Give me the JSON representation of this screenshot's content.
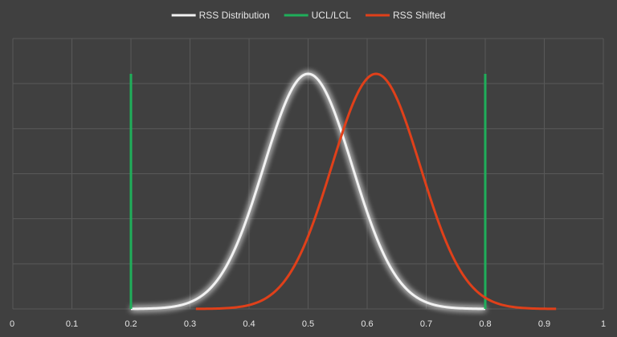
{
  "colors": {
    "background": "#404040",
    "plot_background": "#404040",
    "grid": "#595959",
    "axis_text": "#e6e6e6",
    "rss_distribution": "#f2f2f2",
    "ucl_lcl": "#1fae5a",
    "rss_shifted": "#e0401a"
  },
  "chart_data": {
    "type": "line",
    "title": "",
    "xlabel": "",
    "ylabel": "",
    "xlim": [
      0,
      1
    ],
    "x_ticks": [
      "0",
      "0.1",
      "0.2",
      "0.3",
      "0.4",
      "0.5",
      "0.6",
      "0.7",
      "0.8",
      "0.9",
      "1"
    ],
    "y_axis_labels_shown": false,
    "grid": true,
    "legend_position": "top-center",
    "series": [
      {
        "name": "RSS Distribution",
        "color": "#f2f2f2",
        "glow": true,
        "kind": "normal-curve",
        "mean": 0.5,
        "std": 0.075,
        "x_range": [
          0.2,
          0.8
        ],
        "peak": 1.0
      },
      {
        "name": "UCL/LCL",
        "color": "#1fae5a",
        "kind": "vertical-lines",
        "x": [
          0.2,
          0.8
        ],
        "height": 1.0
      },
      {
        "name": "RSS Shifted",
        "color": "#e0401a",
        "kind": "normal-curve",
        "mean": 0.615,
        "std": 0.075,
        "x_range": [
          0.31,
          0.92
        ],
        "peak": 1.0
      }
    ]
  }
}
